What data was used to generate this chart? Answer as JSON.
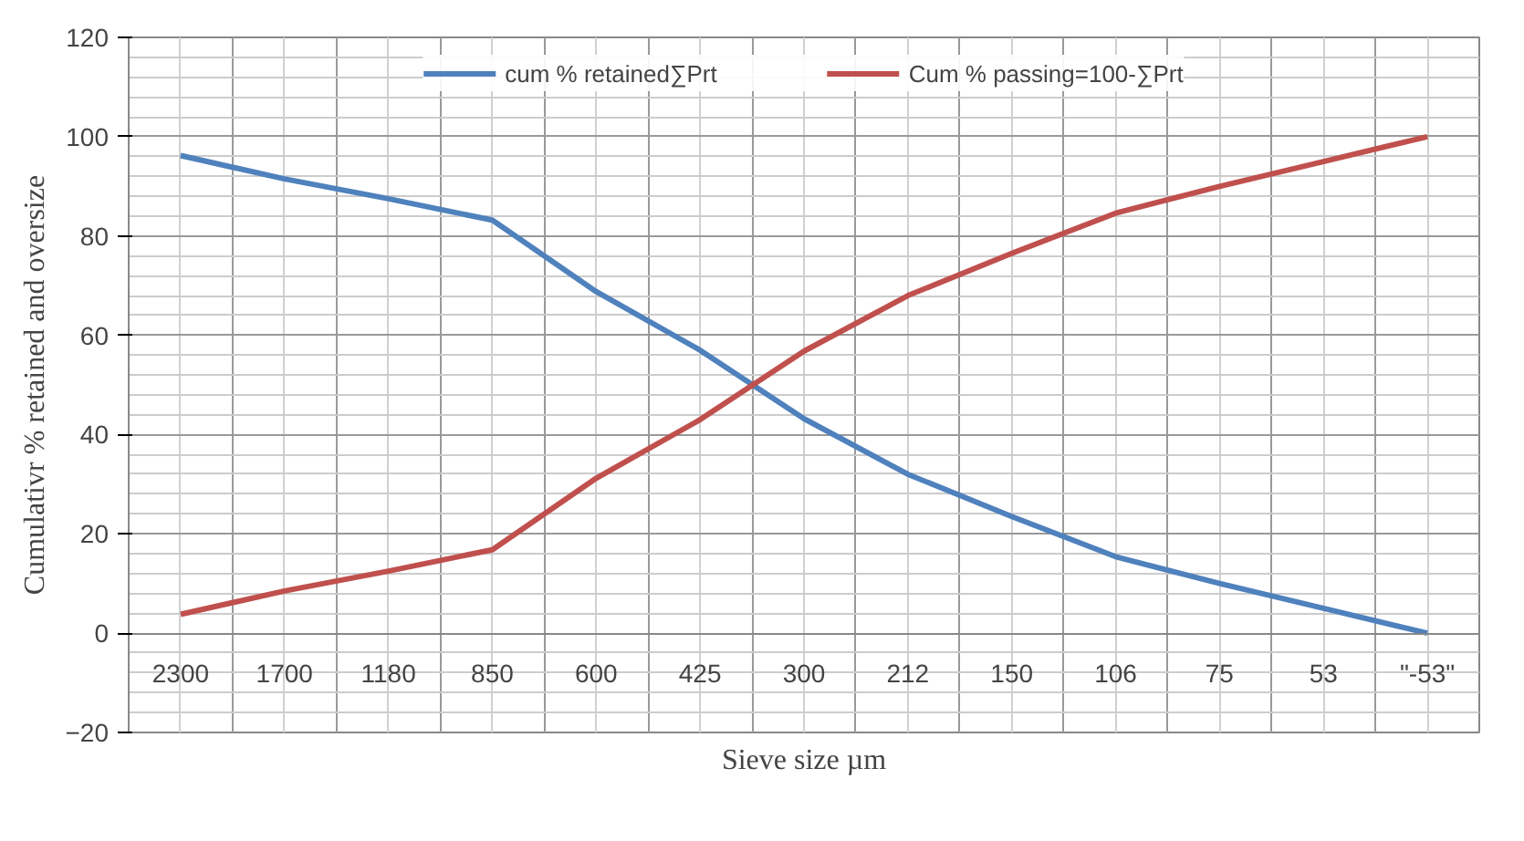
{
  "chart_data": {
    "type": "line",
    "xlabel": "Sieve size µm",
    "ylabel": "Cumulativr % retained and oversize",
    "categories": [
      "2300",
      "1700",
      "1180",
      "850",
      "600",
      "425",
      "300",
      "212",
      "150",
      "106",
      "75",
      "53",
      "\"-53\""
    ],
    "series": [
      {
        "name": "cum % retained∑Prt",
        "color": "#4f81bd",
        "values": [
          96.2,
          91.5,
          87.5,
          83.2,
          68.8,
          57,
          43.2,
          32,
          23.5,
          15.4,
          10,
          5,
          0
        ]
      },
      {
        "name": "Cum % passing=100-∑Prt",
        "color": "#c0504d",
        "values": [
          3.8,
          8.5,
          12.5,
          16.8,
          31.2,
          43,
          56.8,
          68,
          76.5,
          84.6,
          90,
          95,
          100
        ]
      }
    ],
    "ylim": [
      -20,
      120
    ],
    "yticks": [
      -20,
      0,
      20,
      40,
      60,
      80,
      100,
      120
    ],
    "grid": true,
    "legend": "top",
    "marker": "none",
    "line_style": "solid"
  }
}
